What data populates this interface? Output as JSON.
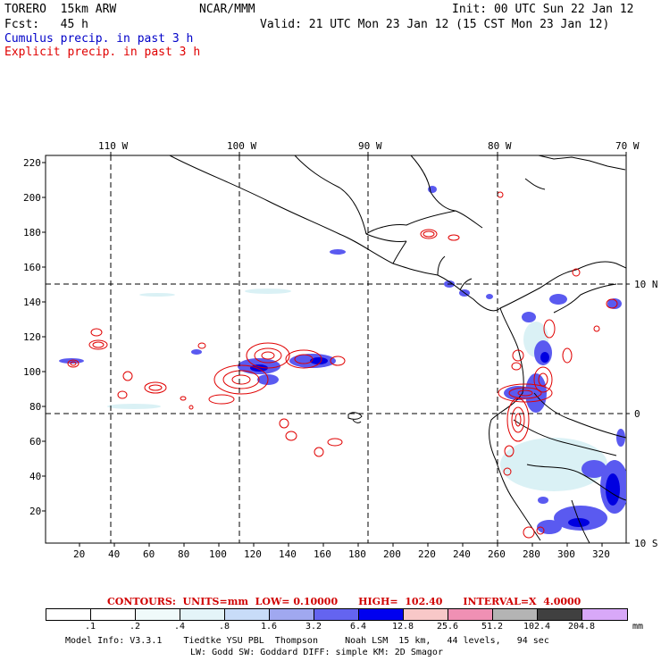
{
  "header": {
    "model": "TORERO  15km ARW",
    "center": "NCAR/MMM",
    "init": "Init: 00 UTC Sun 22 Jan 12",
    "fcst": "Fcst:   45 h",
    "valid": "Valid: 21 UTC Mon 23 Jan 12 (15 CST Mon 23 Jan 12)",
    "field_cumulus": "Cumulus precip. in past 3 h",
    "field_explicit": "Explicit precip. in past 3 h",
    "cumulus_color": "#0000c8",
    "explicit_color": "#e00000"
  },
  "map": {
    "lon_labels": [
      "110 W",
      "100 W",
      "90 W",
      "80 W",
      "70 W"
    ],
    "lat_labels": [
      "10 N",
      "0",
      "10 S"
    ],
    "y_ticks": [
      "220",
      "200",
      "180",
      "160",
      "140",
      "120",
      "100",
      "80",
      "60",
      "40",
      "20"
    ],
    "x_ticks": [
      "20",
      "40",
      "60",
      "80",
      "100",
      "120",
      "140",
      "160",
      "180",
      "200",
      "220",
      "240",
      "260",
      "280",
      "300",
      "320"
    ]
  },
  "contours": {
    "caption": "CONTOURS:  UNITS=mm  LOW= 0.10000      HIGH=  102.40      INTERVAL=X  4.0000"
  },
  "colorbar": {
    "levels": [
      ".1",
      ".2",
      ".4",
      ".8",
      "1.6",
      "3.2",
      "6.4",
      "12.8",
      "25.6",
      "51.2",
      "102.4",
      "204.8"
    ],
    "unit": "mm",
    "colors": [
      "#ffffff",
      "#ffffff",
      "#f0fafa",
      "#e4f4f8",
      "#c8dcf8",
      "#a0a8f0",
      "#6464f0",
      "#0000f0",
      "#f8c8c8",
      "#f090b4",
      "#b4b4b4",
      "#404040",
      "#d8a8f8"
    ]
  },
  "footer": {
    "line1": "Model Info: V3.3.1    Tiedtke YSU PBL  Thompson     Noah LSM  15 km,   44 levels,   94 sec",
    "line2": "LW: Godd SW: Goddard DIFF: simple KM: 2D Smagor"
  }
}
